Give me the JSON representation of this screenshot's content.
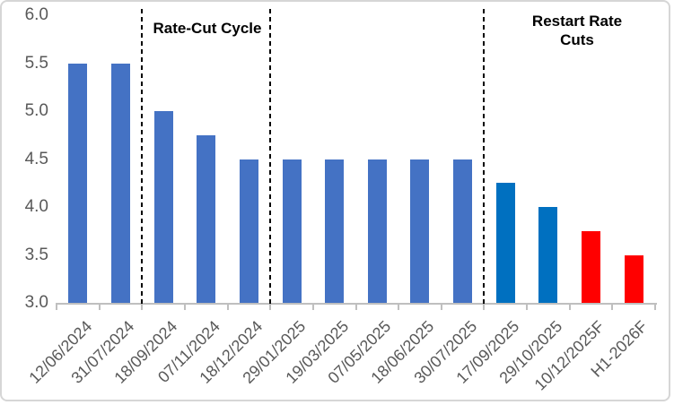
{
  "chart_data": {
    "type": "bar",
    "title": "",
    "xlabel": "",
    "ylabel": "",
    "categories": [
      "12/06/2024",
      "31/07/2024",
      "18/09/2024",
      "07/11/2024",
      "18/12/2024",
      "29/01/2025",
      "19/03/2025",
      "07/05/2025",
      "18/06/2025",
      "30/07/2025",
      "17/09/2025",
      "29/10/2025",
      "10/12/2025F",
      "H1-2026F"
    ],
    "values": [
      5.5,
      5.5,
      5.0,
      4.75,
      4.5,
      4.5,
      4.5,
      4.5,
      4.5,
      4.5,
      4.25,
      4.0,
      3.75,
      3.5
    ],
    "bar_colors": [
      "#4472C4",
      "#4472C4",
      "#4472C4",
      "#4472C4",
      "#4472C4",
      "#4472C4",
      "#4472C4",
      "#4472C4",
      "#4472C4",
      "#4472C4",
      "#0070C0",
      "#0070C0",
      "#FF0000",
      "#FF0000"
    ],
    "ylim": [
      3.0,
      6.0
    ],
    "yticks": [
      "6.0",
      "5.5",
      "5.0",
      "4.5",
      "4.0",
      "3.5",
      "3.0"
    ],
    "grid": false,
    "legend_position": "none",
    "dividers_after_category_index": [
      2,
      5,
      10
    ],
    "annotations": [
      {
        "id": "rate-cut-cycle",
        "text": "Rate-Cut Cycle"
      },
      {
        "id": "restart-rate-cuts",
        "text": "Restart Rate Cuts"
      }
    ]
  },
  "colors": {
    "bar_blue": "#4472C4",
    "bar_bright_blue": "#0070C0",
    "bar_red": "#FF0000",
    "axis_line": "#BFBFBF",
    "axis_text": "#595959",
    "divider_line": "#000000",
    "chart_border": "#D6D6D6",
    "background": "#FFFFFF"
  }
}
